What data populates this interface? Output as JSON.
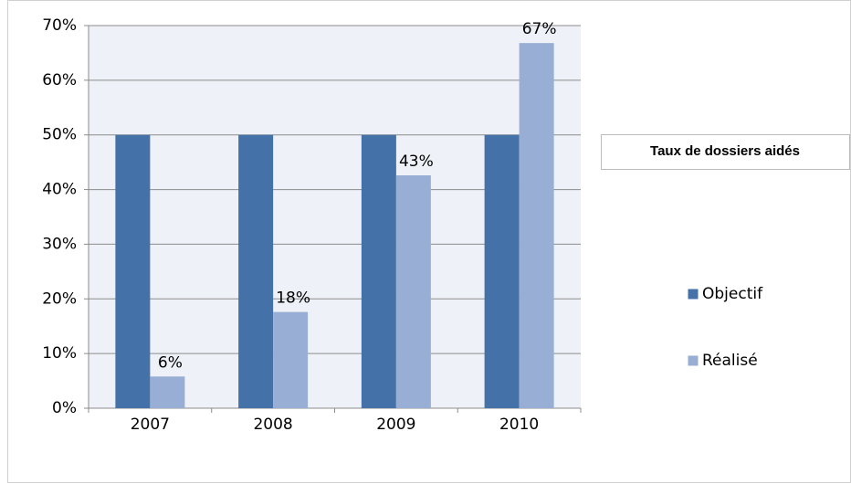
{
  "chart_data": {
    "type": "bar",
    "title": "Taux de dossiers aidés",
    "categories": [
      "2007",
      "2008",
      "2009",
      "2010"
    ],
    "series": [
      {
        "name": "Objectif",
        "color": "#4472a8",
        "values": [
          50,
          50,
          50,
          50
        ]
      },
      {
        "name": "Réalisé",
        "color": "#98aed4",
        "values": [
          5.8,
          17.6,
          42.6,
          66.8
        ],
        "value_labels": [
          "6%",
          "18%",
          "43%",
          "67%"
        ]
      }
    ],
    "ylim": [
      0,
      70
    ],
    "yticks": [
      {
        "value": 0,
        "label": "0%"
      },
      {
        "value": 10,
        "label": "10%"
      },
      {
        "value": 20,
        "label": "20%"
      },
      {
        "value": 30,
        "label": "30%"
      },
      {
        "value": 40,
        "label": "40%"
      },
      {
        "value": 50,
        "label": "50%"
      },
      {
        "value": 60,
        "label": "60%"
      },
      {
        "value": 70,
        "label": "70%"
      }
    ],
    "grid": true,
    "legend": "right"
  }
}
